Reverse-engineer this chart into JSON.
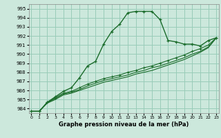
{
  "xlabel": "Graphe pression niveau de la mer (hPa)",
  "bg_color": "#cce8dc",
  "grid_color": "#99ccb8",
  "line_color": "#1a6b2a",
  "ylim": [
    983.5,
    995.5
  ],
  "xlim": [
    -0.3,
    23.3
  ],
  "yticks": [
    984,
    985,
    986,
    987,
    988,
    989,
    990,
    991,
    992,
    993,
    994,
    995
  ],
  "xticks": [
    0,
    1,
    2,
    3,
    4,
    5,
    6,
    7,
    8,
    9,
    10,
    11,
    12,
    13,
    14,
    15,
    16,
    17,
    18,
    19,
    20,
    21,
    22,
    23
  ],
  "series1": [
    983.7,
    983.7,
    984.7,
    985.3,
    985.9,
    986.3,
    987.4,
    988.7,
    989.2,
    991.1,
    992.5,
    993.3,
    994.55,
    994.7,
    994.7,
    994.7,
    993.8,
    991.5,
    991.35,
    991.1,
    991.1,
    990.9,
    991.5,
    991.8
  ],
  "series2": [
    983.7,
    983.7,
    984.7,
    985.2,
    985.7,
    985.9,
    986.3,
    986.7,
    987.0,
    987.3,
    987.5,
    987.7,
    988.0,
    988.2,
    988.5,
    988.7,
    989.0,
    989.3,
    989.6,
    989.9,
    990.3,
    990.6,
    991.0,
    991.8
  ],
  "series3": [
    983.7,
    983.7,
    984.65,
    985.1,
    985.6,
    985.8,
    986.1,
    986.5,
    986.8,
    987.1,
    987.3,
    987.5,
    987.7,
    988.0,
    988.2,
    988.5,
    988.7,
    989.0,
    989.3,
    989.6,
    990.0,
    990.3,
    990.8,
    991.8
  ],
  "series4": [
    983.7,
    983.7,
    984.6,
    985.0,
    985.5,
    985.7,
    986.0,
    986.3,
    986.6,
    986.9,
    987.1,
    987.3,
    987.5,
    987.8,
    988.0,
    988.2,
    988.5,
    988.8,
    989.1,
    989.4,
    989.8,
    990.2,
    990.7,
    991.8
  ]
}
